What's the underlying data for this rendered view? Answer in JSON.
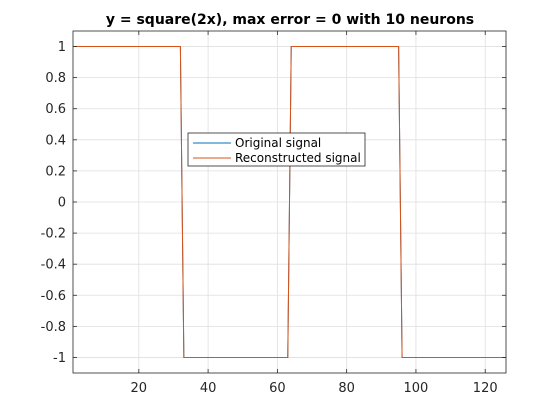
{
  "chart_data": {
    "type": "line",
    "title": "y = square(2x), max error = 0 with 10 neurons",
    "xlabel": "",
    "ylabel": "",
    "xlim": [
      1,
      126
    ],
    "ylim": [
      -1.1,
      1.1
    ],
    "x_ticks": [
      20,
      40,
      60,
      80,
      100,
      120
    ],
    "y_ticks": [
      -1,
      -0.8,
      -0.6,
      -0.4,
      -0.2,
      0,
      0.2,
      0.4,
      0.6,
      0.8,
      1
    ],
    "x_tick_labels": [
      "20",
      "40",
      "60",
      "80",
      "100",
      "120"
    ],
    "y_tick_labels": [
      "-1",
      "-0.8",
      "-0.6",
      "-0.4",
      "-0.2",
      "0",
      "0.2",
      "0.4",
      "0.6",
      "0.8",
      "1"
    ],
    "grid": true,
    "legend_position": "center",
    "series": [
      {
        "name": "Original signal",
        "color": "#0072BD",
        "x": [
          1,
          32,
          33,
          63,
          64,
          95,
          96,
          126
        ],
        "y": [
          1,
          1,
          -1,
          -1,
          1,
          1,
          -1,
          -1
        ]
      },
      {
        "name": "Reconstructed signal",
        "color": "#D95319",
        "x": [
          1,
          32,
          33,
          63,
          64,
          95,
          96,
          126
        ],
        "y": [
          1,
          1,
          -1,
          -1,
          1,
          1,
          -1,
          -1
        ]
      }
    ]
  }
}
